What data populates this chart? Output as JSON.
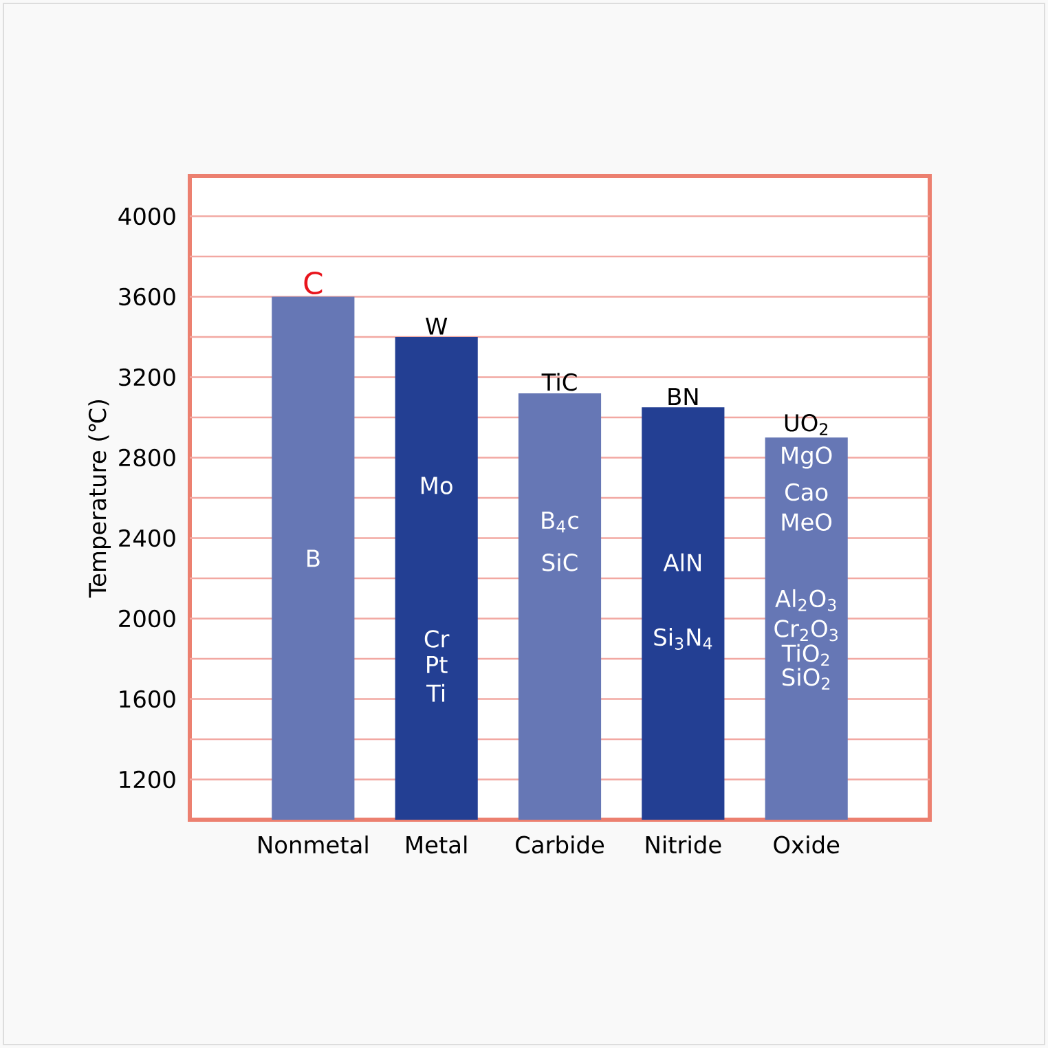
{
  "chart_data": {
    "type": "bar",
    "ylabel": "Temperature (℃)",
    "categories": [
      "Nonmetal",
      "Metal",
      "Carbide",
      "Nitride",
      "Oxide"
    ],
    "values": [
      3600,
      3400,
      3120,
      3050,
      2900
    ],
    "colors": [
      "#6677b5",
      "#233f93",
      "#6677b5",
      "#233f93",
      "#6677b5"
    ],
    "ylim": [
      1000,
      4200
    ],
    "yticks": [
      1200,
      {
        "value": 1400,
        "label": null
      },
      1600,
      {
        "value": 1800,
        "label": null
      },
      2000,
      {
        "value": 2200,
        "label": null
      },
      2400,
      {
        "value": 2600,
        "label": null
      },
      2800,
      {
        "value": 3000,
        "label": null
      },
      3200,
      {
        "value": 3400,
        "label": null
      },
      3600,
      {
        "value": 3800,
        "label": null
      },
      4000
    ],
    "grid": "y",
    "annotations": [
      {
        "text": "C",
        "x": "Nonmetal",
        "y": 3600
      },
      "B",
      {
        "text": "W",
        "x": "Metal",
        "y": 3400
      },
      "Mo",
      "Cr",
      "Pt",
      "Ti",
      {
        "text": "TiC",
        "x": "Carbide",
        "y": 3120
      },
      "B$_{4}$c",
      "SiC",
      {
        "text": "BN",
        "x": "Nitride",
        "y": 3050
      },
      "AlN",
      "Si$_{3}$N$_{4}$",
      {
        "text": "UO$_{2}$",
        "x": "Oxide",
        "y": 2900
      },
      "MgO",
      "Cao",
      "MeO",
      "Al$_{2}$O$_{3}$",
      "Cr$_{2}$O$_{3}$",
      "TiO$_{2}$",
      "SiO$_{2}$"
    ]
  }
}
